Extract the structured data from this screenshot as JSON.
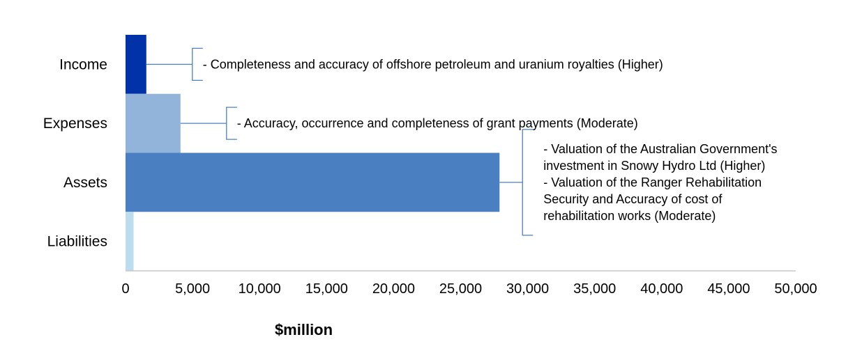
{
  "chart_data": {
    "type": "bar",
    "orientation": "horizontal",
    "categories": [
      "Income",
      "Expenses",
      "Assets",
      "Liabilities"
    ],
    "values": [
      1550,
      4100,
      27900,
      600
    ],
    "colors": [
      "#0232a8",
      "#93b4da",
      "#4a80c2",
      "#bddcee"
    ],
    "xlabel": "$million",
    "xlim": [
      0,
      50000
    ],
    "xticks": [
      0,
      5000,
      10000,
      15000,
      20000,
      25000,
      30000,
      35000,
      40000,
      45000,
      50000
    ],
    "xtick_labels": [
      "0",
      "5,000",
      "10,000",
      "15,000",
      "20,000",
      "25,000",
      "30,000",
      "35,000",
      "40,000",
      "45,000",
      "50,000"
    ],
    "grid": false,
    "annotations": [
      {
        "category": "Income",
        "lines": [
          "- Completeness and accuracy of offshore petroleum and uranium royalties (Higher)"
        ]
      },
      {
        "category": "Expenses",
        "lines": [
          "- Accuracy, occurrence and completeness of grant payments (Moderate)"
        ]
      },
      {
        "category": "Assets",
        "lines": [
          "- Valuation of the Australian Government's",
          "investment in Snowy Hydro Ltd (Higher)",
          "- Valuation of the Ranger Rehabilitation",
          "Security and Accuracy of cost of",
          "rehabilitation works (Moderate)"
        ]
      }
    ],
    "bracket_color": "#4a80c2"
  }
}
